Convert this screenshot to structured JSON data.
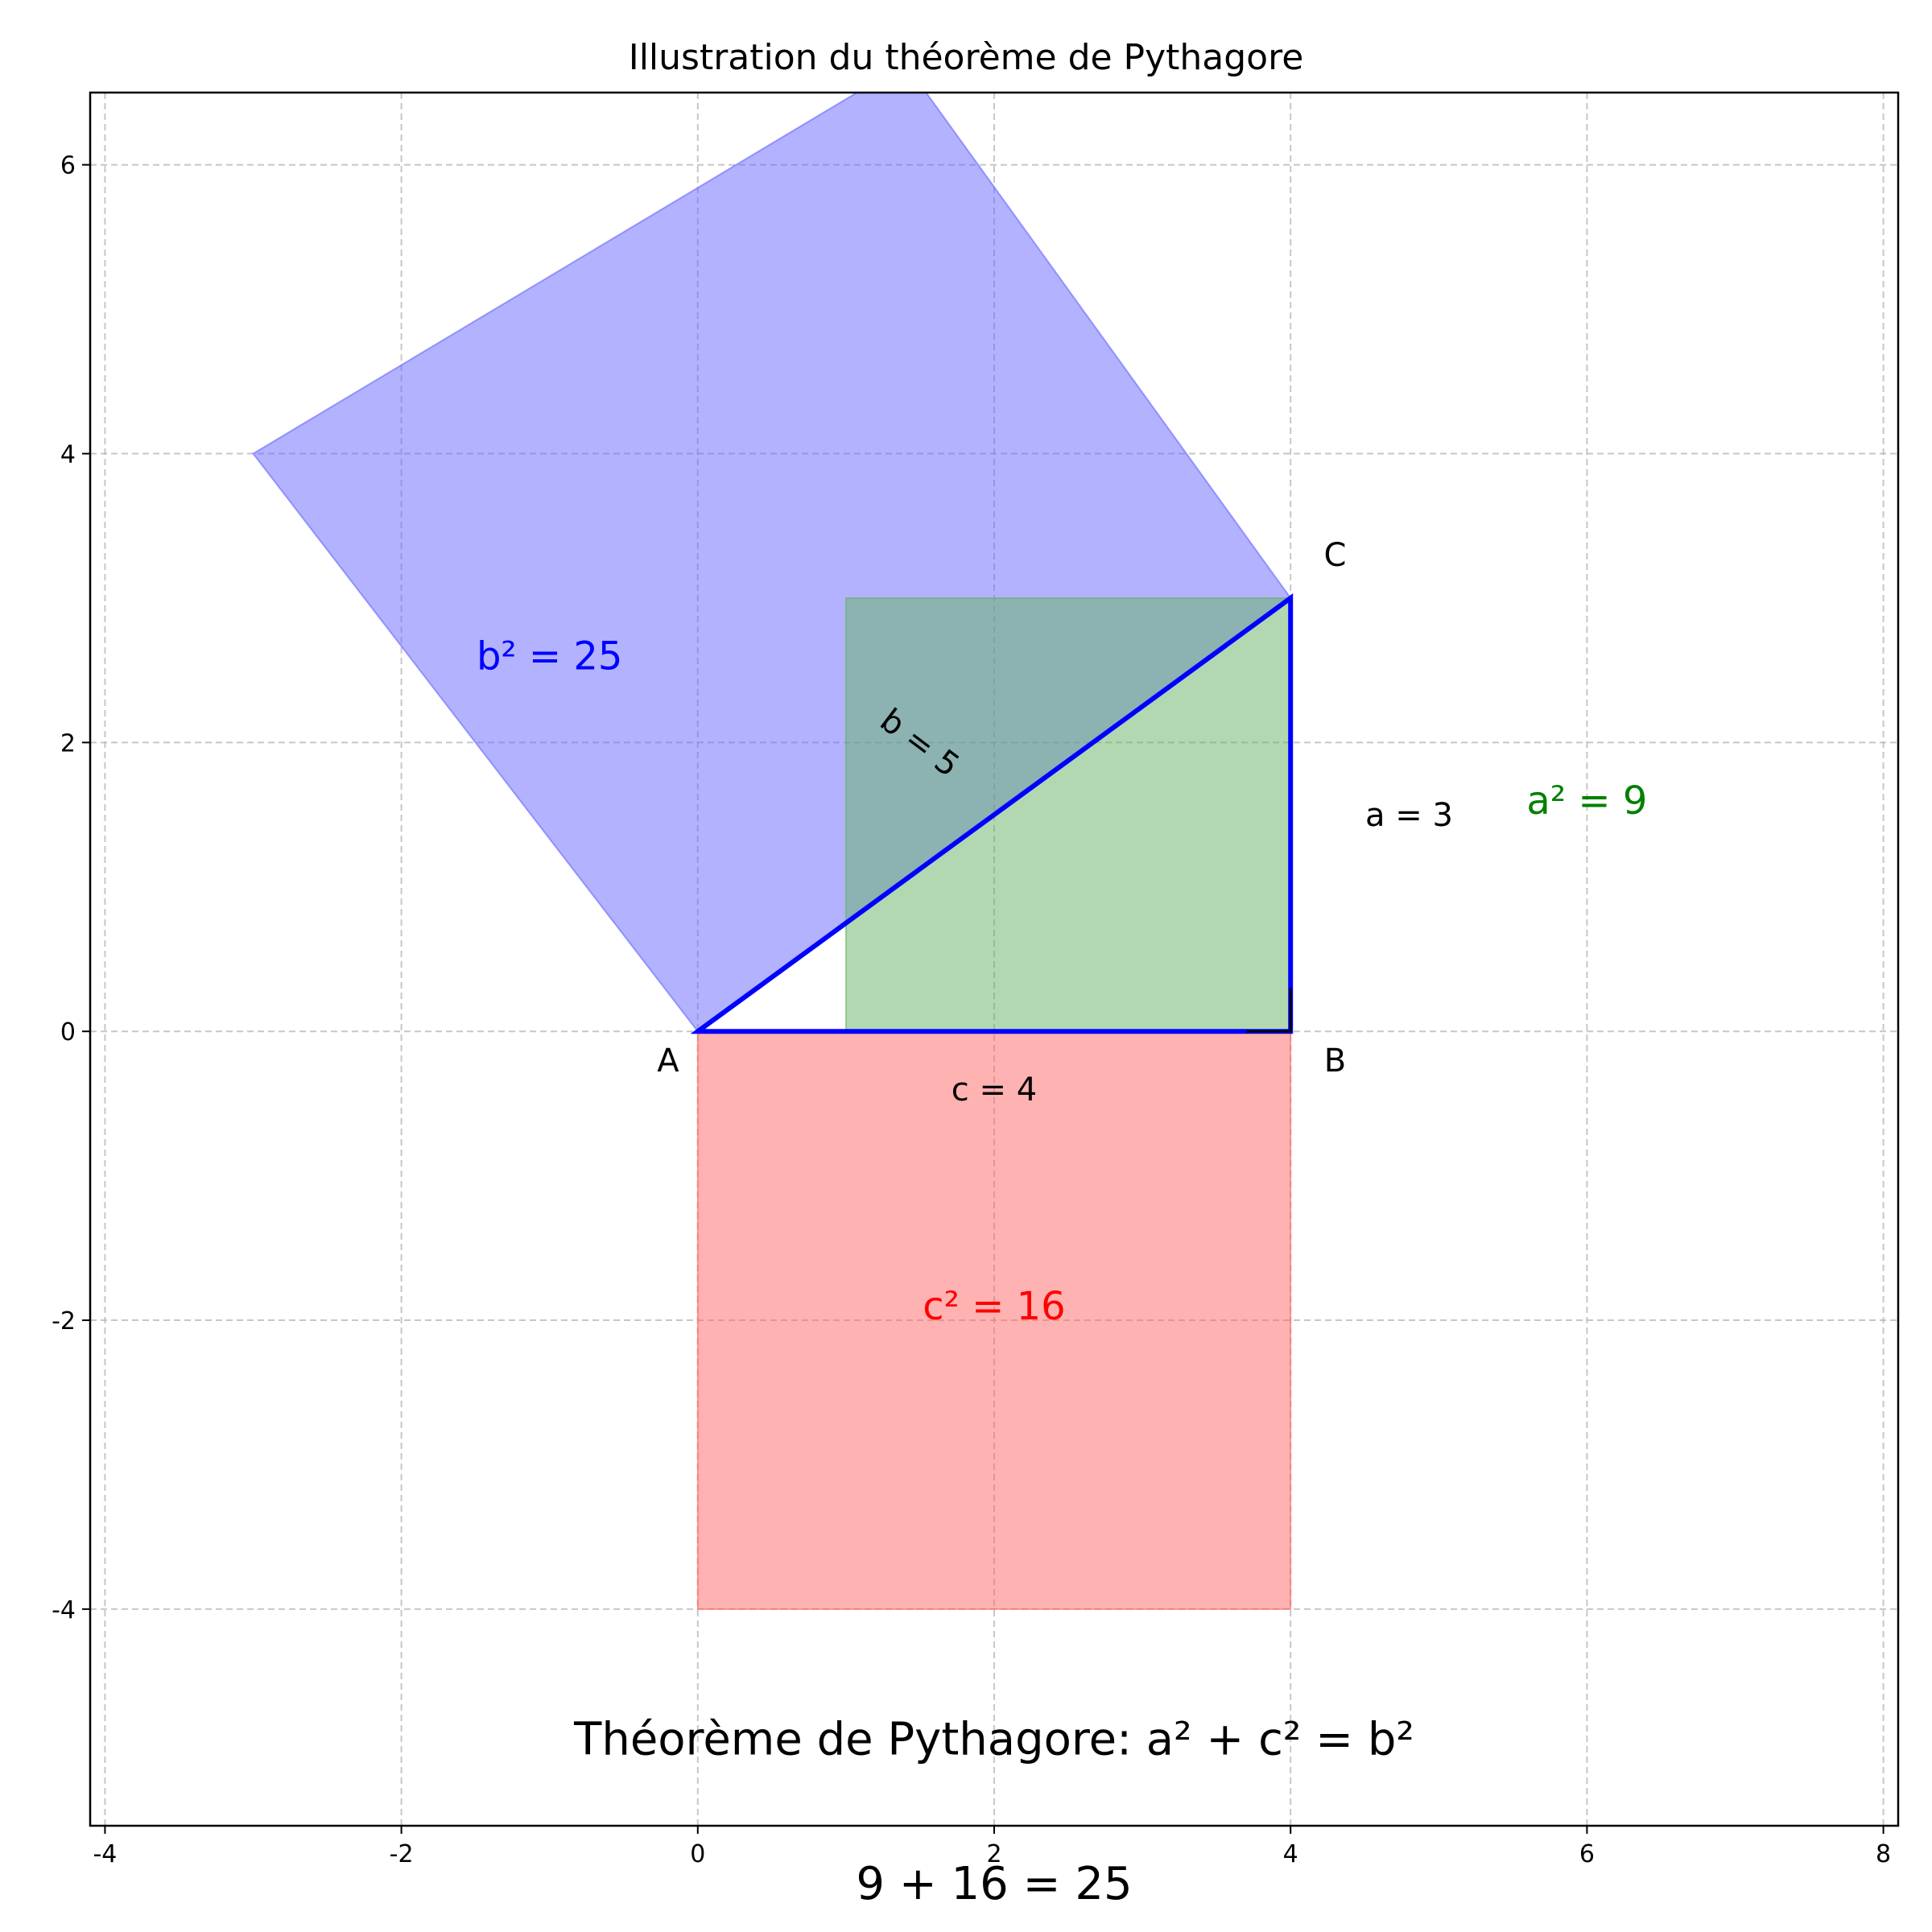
{
  "title": "Illustration du théorème de Pythagore",
  "axes": {
    "xlim": [
      -4.1,
      8.1
    ],
    "ylim": [
      -5.5,
      6.5
    ],
    "xticks": [
      -4,
      -2,
      0,
      2,
      4,
      6,
      8
    ],
    "yticks": [
      -4,
      -2,
      0,
      2,
      4,
      6
    ],
    "grid": true,
    "grid_style": "dashed"
  },
  "triangle": {
    "vertices": [
      [
        0,
        0
      ],
      [
        4,
        0
      ],
      [
        4,
        3
      ]
    ],
    "stroke_color": "#0000ff",
    "right_angle_at": [
      4,
      0
    ]
  },
  "squares": [
    {
      "name": "square-b",
      "points": [
        [
          0,
          0
        ],
        [
          4,
          3
        ],
        [
          1.4,
          6.7
        ],
        [
          -3,
          4
        ]
      ],
      "color": "#6666ff"
    },
    {
      "name": "square-a",
      "points": [
        [
          1,
          0
        ],
        [
          4,
          0
        ],
        [
          4,
          3
        ],
        [
          1,
          3
        ]
      ],
      "color": "#66b266"
    },
    {
      "name": "square-c",
      "points": [
        [
          0,
          0
        ],
        [
          4,
          0
        ],
        [
          4,
          -4
        ],
        [
          0,
          -4
        ]
      ],
      "color": "#ff6666"
    }
  ],
  "vertex_labels": [
    {
      "text": "A",
      "x": -0.2,
      "y": -0.2
    },
    {
      "text": "B",
      "x": 4.3,
      "y": -0.2
    },
    {
      "text": "C",
      "x": 4.3,
      "y": 3.3
    }
  ],
  "side_labels": [
    {
      "text": "c = 4",
      "x": 2,
      "y": -0.4,
      "rotation": 0
    },
    {
      "text": "a = 3",
      "x": 4.8,
      "y": 1.5,
      "rotation": 0
    },
    {
      "text": "b = 5",
      "x": 1.5,
      "y": 2.0,
      "rotation": 37
    }
  ],
  "area_labels": [
    {
      "text": "b² = 25",
      "x": -1,
      "y": 2.6,
      "color": "#0000ff"
    },
    {
      "text": "a² = 9",
      "x": 6,
      "y": 1.6,
      "color": "#008000"
    },
    {
      "text": "c² = 16",
      "x": 2,
      "y": -1.9,
      "color": "#ff0000"
    }
  ],
  "theorem": {
    "text": "Théorème de Pythagore: a² + c² = b²",
    "x": 2,
    "y": -4.9
  },
  "equation": {
    "text": "9 + 16 = 25",
    "x": 2,
    "y": -5.9
  }
}
